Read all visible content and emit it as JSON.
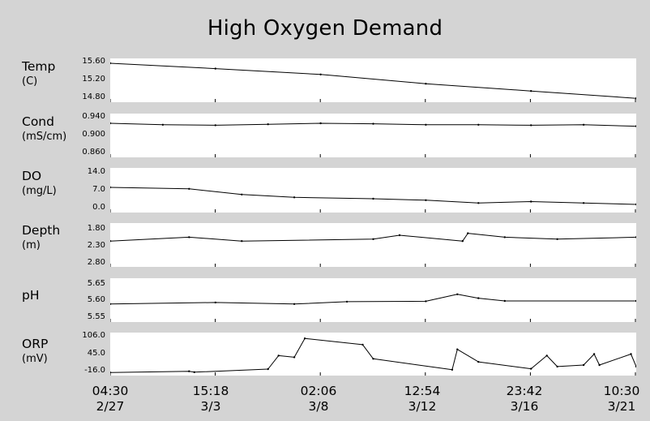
{
  "title": "High Oxygen Demand",
  "chart_data": {
    "type": "line",
    "x_ticks": [
      {
        "time": "04:30",
        "date": "2/27"
      },
      {
        "time": "15:18",
        "date": "3/3"
      },
      {
        "time": "02:06",
        "date": "3/8"
      },
      {
        "time": "12:54",
        "date": "3/12"
      },
      {
        "time": "23:42",
        "date": "3/16"
      },
      {
        "time": "10:30",
        "date": "3/21"
      }
    ],
    "panels": [
      {
        "name": "Temp",
        "unit": "(C)",
        "ticks": [
          "15.60",
          "15.20",
          "14.80"
        ],
        "ylim": [
          14.8,
          15.6
        ],
        "inverted": false,
        "x": [
          0,
          0.2,
          0.4,
          0.6,
          0.8,
          1.0
        ],
        "values": [
          15.55,
          15.44,
          15.32,
          15.13,
          14.98,
          14.83
        ]
      },
      {
        "name": "Cond",
        "unit": "(mS/cm)",
        "ticks": [
          "0.940",
          "0.900",
          "0.860"
        ],
        "ylim": [
          0.86,
          0.94
        ],
        "inverted": false,
        "x": [
          0,
          0.1,
          0.2,
          0.3,
          0.4,
          0.5,
          0.6,
          0.7,
          0.8,
          0.9,
          1.0
        ],
        "values": [
          0.925,
          0.922,
          0.921,
          0.923,
          0.925,
          0.924,
          0.922,
          0.922,
          0.921,
          0.922,
          0.919
        ]
      },
      {
        "name": "DO",
        "unit": "(mg/L)",
        "ticks": [
          "14.0",
          "7.0",
          "0.0"
        ],
        "ylim": [
          0,
          14
        ],
        "inverted": false,
        "x": [
          0,
          0.15,
          0.25,
          0.35,
          0.5,
          0.6,
          0.7,
          0.8,
          0.9,
          1.0
        ],
        "values": [
          8.0,
          7.5,
          5.5,
          4.5,
          4.0,
          3.5,
          2.5,
          3.0,
          2.5,
          2.0
        ]
      },
      {
        "name": "Depth",
        "unit": "(m)",
        "ticks": [
          "1.80",
          "2.30",
          "2.80"
        ],
        "ylim": [
          1.8,
          2.8
        ],
        "inverted": true,
        "x": [
          0,
          0.15,
          0.25,
          0.5,
          0.55,
          0.67,
          0.68,
          0.75,
          0.85,
          1.0
        ],
        "values": [
          2.2,
          2.1,
          2.2,
          2.15,
          2.05,
          2.2,
          2.0,
          2.1,
          2.15,
          2.1
        ]
      },
      {
        "name": "pH",
        "unit": "",
        "ticks": [
          "5.65",
          "5.60",
          "5.55"
        ],
        "ylim": [
          5.55,
          5.65
        ],
        "inverted": false,
        "x": [
          0,
          0.2,
          0.35,
          0.45,
          0.6,
          0.66,
          0.7,
          0.75,
          1.0
        ],
        "values": [
          5.59,
          5.594,
          5.59,
          5.596,
          5.597,
          5.615,
          5.605,
          5.598,
          5.598
        ]
      },
      {
        "name": "ORP",
        "unit": "(mV)",
        "ticks": [
          "106.0",
          "45.0",
          "-16.0"
        ],
        "ylim": [
          -16,
          106
        ],
        "inverted": false,
        "x": [
          0,
          0.15,
          0.16,
          0.3,
          0.32,
          0.35,
          0.37,
          0.48,
          0.5,
          0.65,
          0.66,
          0.7,
          0.8,
          0.83,
          0.85,
          0.9,
          0.92,
          0.93,
          0.99,
          1.0
        ],
        "values": [
          -14,
          -10,
          -13,
          -3,
          40,
          35,
          95,
          75,
          30,
          -5,
          60,
          20,
          -2,
          40,
          5,
          10,
          45,
          10,
          45,
          5
        ]
      }
    ]
  }
}
